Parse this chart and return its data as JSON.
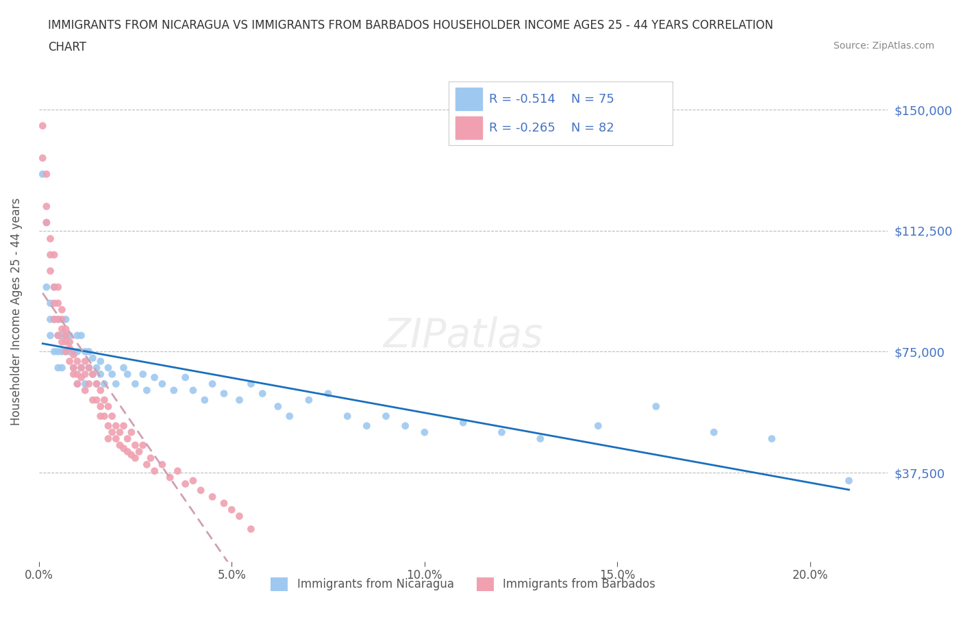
{
  "title_line1": "IMMIGRANTS FROM NICARAGUA VS IMMIGRANTS FROM BARBADOS HOUSEHOLDER INCOME AGES 25 - 44 YEARS CORRELATION",
  "title_line2": "CHART",
  "source_text": "Source: ZipAtlas.com",
  "ylabel": "Householder Income Ages 25 - 44 years",
  "xlabel_bottom": "",
  "legend_label1": "Immigrants from Nicaragua",
  "legend_label2": "Immigrants from Barbados",
  "legend_R1": "R = -0.514",
  "legend_N1": "N = 75",
  "legend_R2": "R = -0.265",
  "legend_N2": "N = 82",
  "color_nicaragua": "#9ec8f0",
  "color_barbados": "#f0a0b0",
  "trendline_nicaragua": "#1a6fbd",
  "trendline_barbados": "#d0a0b0",
  "ytick_labels": [
    "$37,500",
    "$75,000",
    "$112,500",
    "$150,000"
  ],
  "ytick_values": [
    37500,
    75000,
    112500,
    150000
  ],
  "xlim": [
    0.0,
    0.22
  ],
  "ylim": [
    10000,
    165000
  ],
  "xtick_labels": [
    "0.0%",
    "5.0%",
    "10.0%",
    "15.0%",
    "20.0%"
  ],
  "xtick_values": [
    0.0,
    0.05,
    0.1,
    0.15,
    0.2
  ],
  "watermark": "ZIPatlas",
  "nicaragua_x": [
    0.001,
    0.002,
    0.002,
    0.003,
    0.003,
    0.003,
    0.004,
    0.004,
    0.004,
    0.005,
    0.005,
    0.005,
    0.005,
    0.006,
    0.006,
    0.006,
    0.007,
    0.007,
    0.007,
    0.008,
    0.008,
    0.009,
    0.009,
    0.01,
    0.01,
    0.01,
    0.011,
    0.011,
    0.012,
    0.012,
    0.013,
    0.013,
    0.014,
    0.014,
    0.015,
    0.015,
    0.016,
    0.016,
    0.017,
    0.018,
    0.019,
    0.02,
    0.022,
    0.023,
    0.025,
    0.027,
    0.028,
    0.03,
    0.032,
    0.035,
    0.038,
    0.04,
    0.043,
    0.045,
    0.048,
    0.052,
    0.055,
    0.058,
    0.062,
    0.065,
    0.07,
    0.075,
    0.08,
    0.085,
    0.09,
    0.095,
    0.1,
    0.11,
    0.12,
    0.13,
    0.145,
    0.16,
    0.175,
    0.19,
    0.21
  ],
  "nicaragua_y": [
    130000,
    115000,
    95000,
    90000,
    85000,
    80000,
    75000,
    85000,
    95000,
    80000,
    75000,
    85000,
    70000,
    75000,
    80000,
    70000,
    80000,
    75000,
    85000,
    75000,
    80000,
    70000,
    75000,
    80000,
    65000,
    75000,
    70000,
    80000,
    75000,
    65000,
    70000,
    75000,
    68000,
    73000,
    70000,
    65000,
    72000,
    68000,
    65000,
    70000,
    68000,
    65000,
    70000,
    68000,
    65000,
    68000,
    63000,
    67000,
    65000,
    63000,
    67000,
    63000,
    60000,
    65000,
    62000,
    60000,
    65000,
    62000,
    58000,
    55000,
    60000,
    62000,
    55000,
    52000,
    55000,
    52000,
    50000,
    53000,
    50000,
    48000,
    52000,
    58000,
    50000,
    48000,
    35000
  ],
  "barbados_x": [
    0.001,
    0.001,
    0.002,
    0.002,
    0.002,
    0.003,
    0.003,
    0.003,
    0.004,
    0.004,
    0.004,
    0.004,
    0.005,
    0.005,
    0.005,
    0.005,
    0.006,
    0.006,
    0.006,
    0.006,
    0.007,
    0.007,
    0.007,
    0.007,
    0.008,
    0.008,
    0.008,
    0.009,
    0.009,
    0.009,
    0.01,
    0.01,
    0.01,
    0.011,
    0.011,
    0.012,
    0.012,
    0.012,
    0.013,
    0.013,
    0.014,
    0.014,
    0.015,
    0.015,
    0.016,
    0.016,
    0.016,
    0.017,
    0.017,
    0.018,
    0.018,
    0.018,
    0.019,
    0.019,
    0.02,
    0.02,
    0.021,
    0.021,
    0.022,
    0.022,
    0.023,
    0.023,
    0.024,
    0.024,
    0.025,
    0.025,
    0.026,
    0.027,
    0.028,
    0.029,
    0.03,
    0.032,
    0.034,
    0.036,
    0.038,
    0.04,
    0.042,
    0.045,
    0.048,
    0.05,
    0.052,
    0.055
  ],
  "barbados_y": [
    145000,
    135000,
    130000,
    120000,
    115000,
    110000,
    105000,
    100000,
    95000,
    105000,
    90000,
    85000,
    95000,
    85000,
    90000,
    80000,
    88000,
    82000,
    78000,
    85000,
    80000,
    78000,
    82000,
    75000,
    78000,
    72000,
    76000,
    74000,
    70000,
    68000,
    72000,
    68000,
    65000,
    70000,
    67000,
    68000,
    72000,
    63000,
    70000,
    65000,
    68000,
    60000,
    65000,
    60000,
    63000,
    58000,
    55000,
    60000,
    55000,
    58000,
    52000,
    48000,
    55000,
    50000,
    52000,
    48000,
    50000,
    46000,
    52000,
    45000,
    48000,
    44000,
    50000,
    43000,
    46000,
    42000,
    44000,
    46000,
    40000,
    42000,
    38000,
    40000,
    36000,
    38000,
    34000,
    35000,
    32000,
    30000,
    28000,
    26000,
    24000,
    20000
  ]
}
